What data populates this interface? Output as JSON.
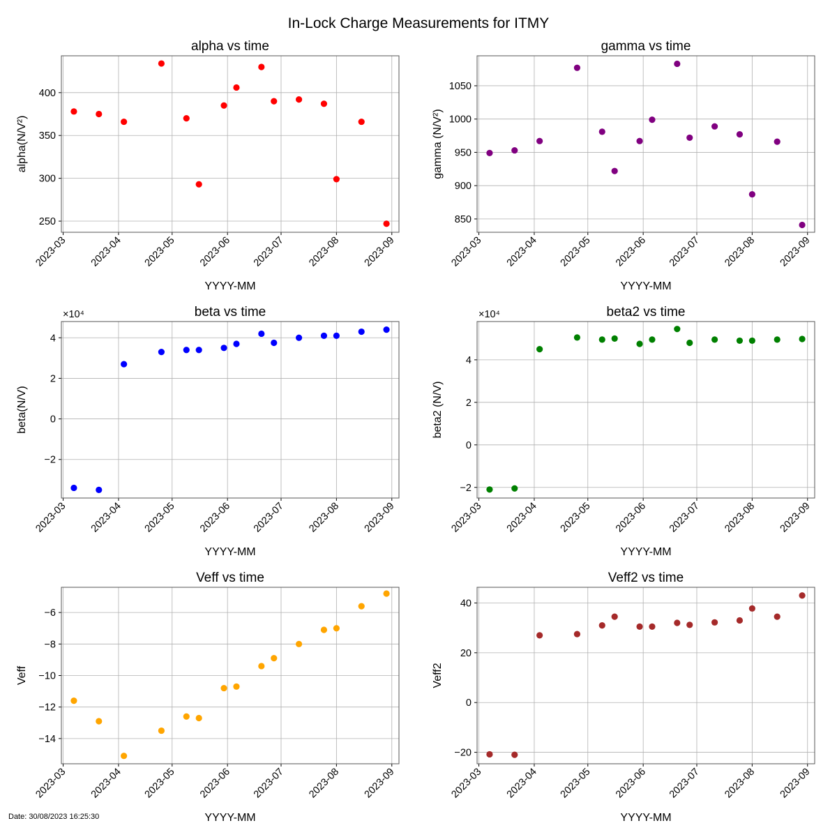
{
  "figure": {
    "title": "In-Lock Charge Measurements for ITMY",
    "date_stamp": "Date: 30/08/2023 16:25:30"
  },
  "chart_data": [
    {
      "type": "scatter",
      "title": "alpha vs time",
      "xlabel": "YYYY-MM",
      "ylabel": "alpha(N/V²)",
      "color": "#ff0000",
      "xlim": [
        "2023-02-28",
        "2023-09-05"
      ],
      "ylim": [
        237,
        443
      ],
      "yticks": [
        250,
        300,
        350,
        400
      ],
      "ytick_labels": [
        "250",
        "300",
        "350",
        "400"
      ],
      "multiplier": "",
      "grid": true,
      "x": [
        "2023-03-07",
        "2023-03-21",
        "2023-04-04",
        "2023-04-25",
        "2023-05-09",
        "2023-05-16",
        "2023-05-30",
        "2023-06-06",
        "2023-06-20",
        "2023-06-27",
        "2023-07-11",
        "2023-07-25",
        "2023-08-01",
        "2023-08-15",
        "2023-08-29"
      ],
      "y": [
        378,
        375,
        366,
        434,
        370,
        293,
        385,
        406,
        430,
        390,
        392,
        387,
        299,
        366,
        247
      ]
    },
    {
      "type": "scatter",
      "title": "gamma vs time",
      "xlabel": "YYYY-MM",
      "ylabel": "gamma (N/V²)",
      "color": "#800080",
      "xlim": [
        "2023-02-28",
        "2023-09-05"
      ],
      "ylim": [
        830,
        1095
      ],
      "yticks": [
        850,
        900,
        950,
        1000,
        1050
      ],
      "ytick_labels": [
        "850",
        "900",
        "950",
        "1000",
        "1050"
      ],
      "multiplier": "",
      "grid": true,
      "x": [
        "2023-03-07",
        "2023-03-21",
        "2023-04-04",
        "2023-04-25",
        "2023-05-09",
        "2023-05-16",
        "2023-05-30",
        "2023-06-06",
        "2023-06-20",
        "2023-06-27",
        "2023-07-11",
        "2023-07-25",
        "2023-08-01",
        "2023-08-15",
        "2023-08-29"
      ],
      "y": [
        949,
        953,
        967,
        1077,
        981,
        922,
        967,
        999,
        1083,
        972,
        989,
        977,
        887,
        966,
        841
      ]
    },
    {
      "type": "scatter",
      "title": "beta vs time",
      "xlabel": "YYYY-MM",
      "ylabel": "beta(N/V)",
      "color": "#0000ff",
      "xlim": [
        "2023-02-28",
        "2023-09-05"
      ],
      "ylim": [
        -3.9,
        4.8
      ],
      "yticks": [
        -2,
        0,
        2,
        4
      ],
      "ytick_labels": [
        "−2",
        "0",
        "2",
        "4"
      ],
      "multiplier": "×10⁴",
      "grid": true,
      "x": [
        "2023-03-07",
        "2023-03-21",
        "2023-04-04",
        "2023-04-25",
        "2023-05-09",
        "2023-05-16",
        "2023-05-30",
        "2023-06-06",
        "2023-06-20",
        "2023-06-27",
        "2023-07-11",
        "2023-07-25",
        "2023-08-01",
        "2023-08-15",
        "2023-08-29"
      ],
      "y": [
        -3.4,
        -3.5,
        2.7,
        3.3,
        3.4,
        3.4,
        3.5,
        3.7,
        4.2,
        3.75,
        4.0,
        4.1,
        4.1,
        4.3,
        4.4
      ]
    },
    {
      "type": "scatter",
      "title": "beta2 vs time",
      "xlabel": "YYYY-MM",
      "ylabel": "beta2 (N/V)",
      "color": "#008000",
      "xlim": [
        "2023-02-28",
        "2023-09-05"
      ],
      "ylim": [
        -2.5,
        5.8
      ],
      "yticks": [
        -2,
        0,
        2,
        4
      ],
      "ytick_labels": [
        "−2",
        "0",
        "2",
        "4"
      ],
      "multiplier": "×10⁴",
      "grid": true,
      "x": [
        "2023-03-07",
        "2023-03-21",
        "2023-04-04",
        "2023-04-25",
        "2023-05-09",
        "2023-05-16",
        "2023-05-30",
        "2023-06-06",
        "2023-06-20",
        "2023-06-27",
        "2023-07-11",
        "2023-07-25",
        "2023-08-01",
        "2023-08-15",
        "2023-08-29"
      ],
      "y": [
        -2.1,
        -2.05,
        4.5,
        5.05,
        4.95,
        5.0,
        4.75,
        4.95,
        5.45,
        4.8,
        4.95,
        4.9,
        4.9,
        4.95,
        4.98
      ]
    },
    {
      "type": "scatter",
      "title": "Veff vs time",
      "xlabel": "YYYY-MM",
      "ylabel": "Veff",
      "color": "#ffa500",
      "xlim": [
        "2023-02-28",
        "2023-09-05"
      ],
      "ylim": [
        -15.6,
        -4.4
      ],
      "yticks": [
        -14,
        -12,
        -10,
        -8,
        -6
      ],
      "ytick_labels": [
        "−14",
        "−12",
        "−10",
        "−8",
        "−6"
      ],
      "multiplier": "",
      "grid": true,
      "x": [
        "2023-03-07",
        "2023-03-21",
        "2023-04-04",
        "2023-04-25",
        "2023-05-09",
        "2023-05-16",
        "2023-05-30",
        "2023-06-06",
        "2023-06-20",
        "2023-06-27",
        "2023-07-11",
        "2023-07-25",
        "2023-08-01",
        "2023-08-15",
        "2023-08-29"
      ],
      "y": [
        -11.6,
        -12.9,
        -15.1,
        -13.5,
        -12.6,
        -12.7,
        -10.8,
        -10.7,
        -9.4,
        -8.9,
        -8.0,
        -7.1,
        -7.0,
        -5.6,
        -4.8
      ]
    },
    {
      "type": "scatter",
      "title": "Veff2 vs time",
      "xlabel": "YYYY-MM",
      "ylabel": "Veff2",
      "color": "#a52a2a",
      "xlim": [
        "2023-02-28",
        "2023-09-05"
      ],
      "ylim": [
        -24.6,
        46.3
      ],
      "yticks": [
        -20,
        0,
        20,
        40
      ],
      "ytick_labels": [
        "−20",
        "0",
        "20",
        "40"
      ],
      "multiplier": "",
      "grid": true,
      "x": [
        "2023-03-07",
        "2023-03-21",
        "2023-04-04",
        "2023-04-25",
        "2023-05-09",
        "2023-05-16",
        "2023-05-30",
        "2023-06-06",
        "2023-06-20",
        "2023-06-27",
        "2023-07-11",
        "2023-07-25",
        "2023-08-01",
        "2023-08-15",
        "2023-08-29"
      ],
      "y": [
        -20.8,
        -21.0,
        27.0,
        27.5,
        31.0,
        34.5,
        30.5,
        30.5,
        32.0,
        31.2,
        32.2,
        33.0,
        37.8,
        34.5,
        43.0
      ]
    }
  ],
  "xticks": [
    "2023-03-01",
    "2023-04-01",
    "2023-05-01",
    "2023-06-01",
    "2023-07-01",
    "2023-08-01",
    "2023-09-01"
  ],
  "xtick_labels": [
    "2023-03",
    "2023-04",
    "2023-05",
    "2023-06",
    "2023-07",
    "2023-08",
    "2023-09"
  ]
}
